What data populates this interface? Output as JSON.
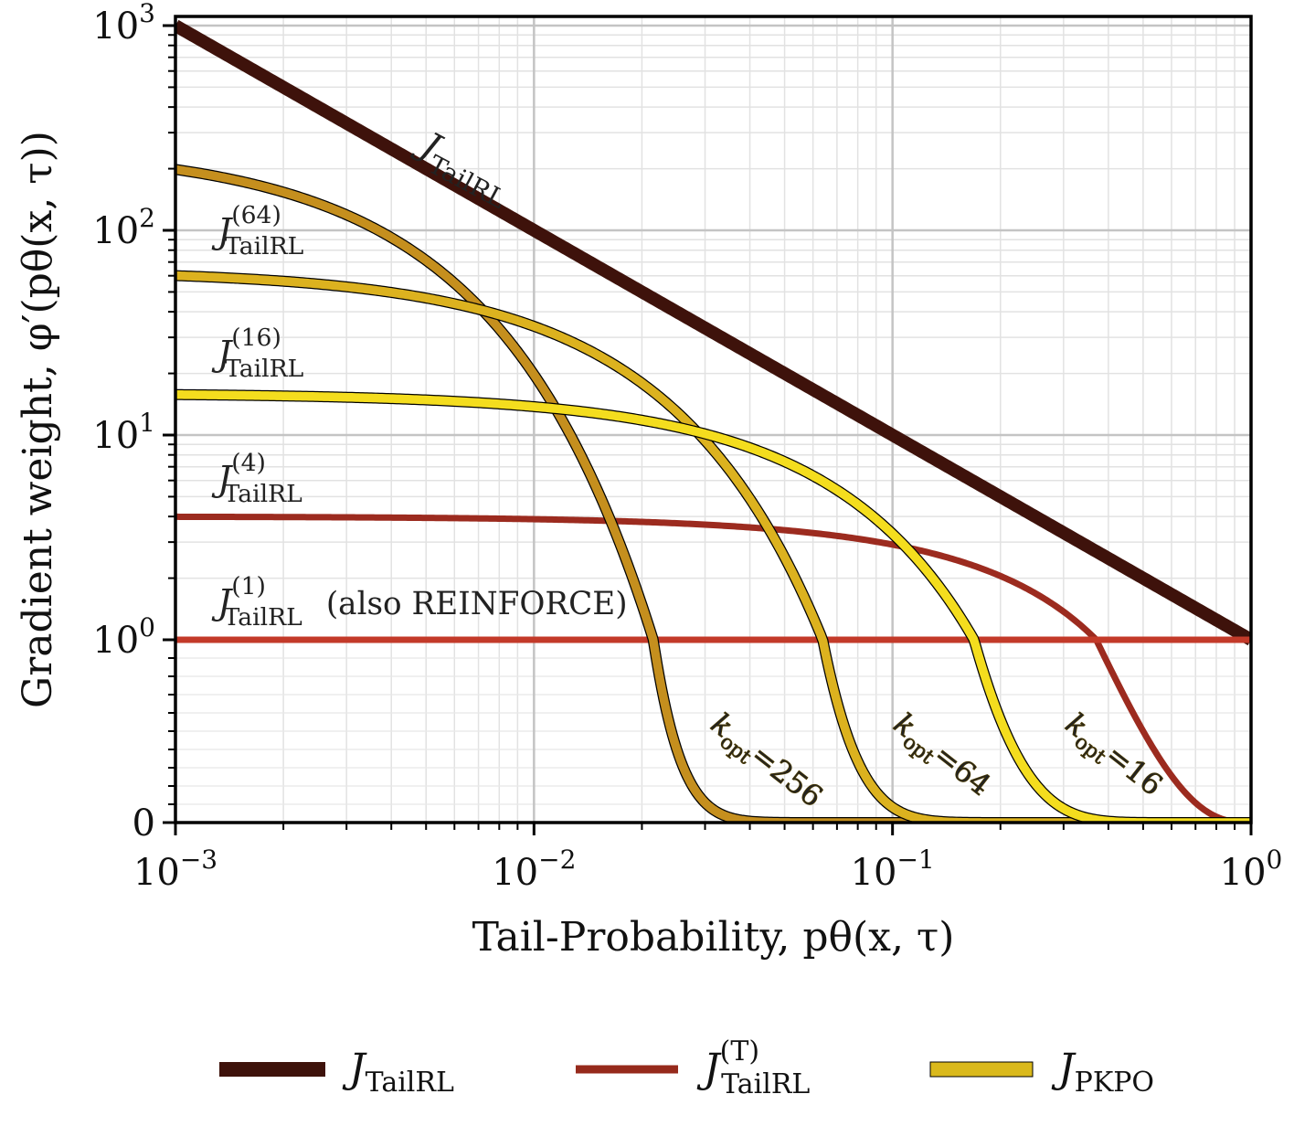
{
  "chart_data": {
    "type": "line",
    "xlabel": "Tail-Probability, pθ(x, τ)",
    "ylabel": "Gradient weight, φ′(pθ(x, τ))",
    "x_scale": "log",
    "xlim": [
      0.001,
      1
    ],
    "y_scale": "symlog",
    "ylim": [
      0,
      1000
    ],
    "y_linthresh": 1,
    "x_ticks": [
      {
        "value": 0.001,
        "base": "10",
        "exp": "−3"
      },
      {
        "value": 0.01,
        "base": "10",
        "exp": "−2"
      },
      {
        "value": 0.1,
        "base": "10",
        "exp": "−1"
      },
      {
        "value": 1,
        "base": "10",
        "exp": "0"
      }
    ],
    "y_ticks": [
      {
        "value": 0,
        "base": "0",
        "exp": ""
      },
      {
        "value": 1,
        "base": "10",
        "exp": "0"
      },
      {
        "value": 10,
        "base": "10",
        "exp": "1"
      },
      {
        "value": 100,
        "base": "10",
        "exp": "2"
      },
      {
        "value": 1000,
        "base": "10",
        "exp": "3"
      }
    ],
    "grid": true,
    "legend_position": "bottom",
    "legend": [
      {
        "label": "J",
        "sub": "TailRL",
        "sup": "",
        "color": "#3e120b",
        "style": "tailrl"
      },
      {
        "label": "J",
        "sub": "TailRL",
        "sup": "(T)",
        "color": "#962a1c",
        "style": "tailrl_t"
      },
      {
        "label": "J",
        "sub": "PKPO",
        "sup": "",
        "color": "#dab91c",
        "style": "pkpo"
      }
    ],
    "series": [
      {
        "group": "tailrl",
        "formula": "1/p",
        "color": "#3e120b"
      },
      {
        "group": "tailrl_t",
        "T": 64,
        "formula": "T(1-p)^(T-1)",
        "color": "#691711"
      },
      {
        "group": "tailrl_t",
        "T": 16,
        "formula": "T(1-p)^(T-1)",
        "color": "#7f1f15"
      },
      {
        "group": "tailrl_t",
        "T": 4,
        "formula": "T(1-p)^(T-1)",
        "color": "#9c2b1f"
      },
      {
        "group": "tailrl_t",
        "T": 1,
        "formula": "T(1-p)^(T-1)",
        "color": "#c33a29"
      },
      {
        "group": "pkpo",
        "k_opt": 256,
        "formula": "k(1-p)^(k-1)",
        "color": "#c58f1e"
      },
      {
        "group": "pkpo",
        "k_opt": 64,
        "formula": "k(1-p)^(k-1)",
        "color": "#dcb21f"
      },
      {
        "group": "pkpo",
        "k_opt": 16,
        "formula": "k(1-p)^(k-1)",
        "color": "#f4dd1e"
      }
    ],
    "annotations": [
      {
        "id": "tailrl",
        "text": "J",
        "sub": "TailRL",
        "sup": ""
      },
      {
        "id": "t64",
        "text": "J",
        "sub": "TailRL",
        "sup": "(64)"
      },
      {
        "id": "t16",
        "text": "J",
        "sub": "TailRL",
        "sup": "(16)"
      },
      {
        "id": "t4",
        "text": "J",
        "sub": "TailRL",
        "sup": "(4)"
      },
      {
        "id": "t1",
        "text": "J",
        "sub": "TailRL",
        "sup": "(1)",
        "suffix": "(also REINFORCE)"
      },
      {
        "id": "k256",
        "text": "k",
        "sub": "opt",
        "value": "=256",
        "color": "#c58f1e"
      },
      {
        "id": "k64",
        "text": "k",
        "sub": "opt",
        "value": "=64",
        "color": "#dcb21f"
      },
      {
        "id": "k16",
        "text": "k",
        "sub": "opt",
        "value": "=16",
        "color": "#f4dd1e"
      }
    ]
  }
}
